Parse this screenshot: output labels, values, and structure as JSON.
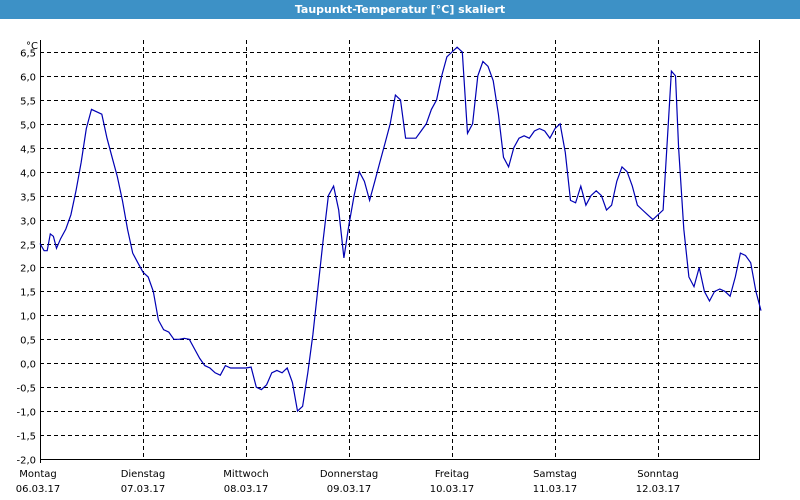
{
  "window": {
    "title": "Taupunkt-Temperatur [°C] skaliert"
  },
  "colors": {
    "titlebar": "#3d91c6",
    "line": "#0000b4",
    "grid": "#000000"
  },
  "chart_data": {
    "type": "line",
    "title": "Taupunkt-Temperatur [°C] skaliert",
    "ylabel": "°C",
    "ylim": [
      -2.0,
      6.75
    ],
    "yticks": [
      6.5,
      6.0,
      5.5,
      5.0,
      4.5,
      4.0,
      3.5,
      3.0,
      2.5,
      2.0,
      1.5,
      1.0,
      0.5,
      0.0,
      -0.5,
      -1.0,
      -1.5,
      -2.0
    ],
    "ytick_labels": [
      "6,5",
      "6,0",
      "5,5",
      "5,0",
      "4,5",
      "4,0",
      "3,5",
      "3,0",
      "2,5",
      "2,0",
      "1,5",
      "1,0",
      "0,5",
      "0,0",
      "-0,5",
      "-1,0",
      "-1,5",
      "-2,0"
    ],
    "xlim": [
      0,
      7
    ],
    "xticks": [
      {
        "day": "Montag",
        "date": "06.03.17"
      },
      {
        "day": "Dienstag",
        "date": "07.03.17"
      },
      {
        "day": "Mittwoch",
        "date": "08.03.17"
      },
      {
        "day": "Donnerstag",
        "date": "09.03.17"
      },
      {
        "day": "Freitag",
        "date": "10.03.17"
      },
      {
        "day": "Samstag",
        "date": "11.03.17"
      },
      {
        "day": "Sonntag",
        "date": "12.03.17"
      }
    ],
    "grid": true,
    "series": [
      {
        "points": [
          [
            0.0,
            2.5
          ],
          [
            0.04,
            2.35
          ],
          [
            0.07,
            2.35
          ],
          [
            0.1,
            2.7
          ],
          [
            0.13,
            2.65
          ],
          [
            0.16,
            2.4
          ],
          [
            0.2,
            2.6
          ],
          [
            0.25,
            2.8
          ],
          [
            0.3,
            3.1
          ],
          [
            0.35,
            3.6
          ],
          [
            0.4,
            4.2
          ],
          [
            0.45,
            4.9
          ],
          [
            0.5,
            5.3
          ],
          [
            0.55,
            5.25
          ],
          [
            0.6,
            5.2
          ],
          [
            0.65,
            4.7
          ],
          [
            0.7,
            4.3
          ],
          [
            0.75,
            3.9
          ],
          [
            0.8,
            3.4
          ],
          [
            0.85,
            2.8
          ],
          [
            0.9,
            2.3
          ],
          [
            0.95,
            2.1
          ],
          [
            1.0,
            1.9
          ],
          [
            1.05,
            1.8
          ],
          [
            1.1,
            1.5
          ],
          [
            1.15,
            0.9
          ],
          [
            1.2,
            0.7
          ],
          [
            1.25,
            0.65
          ],
          [
            1.3,
            0.5
          ],
          [
            1.35,
            0.5
          ],
          [
            1.4,
            0.52
          ],
          [
            1.45,
            0.5
          ],
          [
            1.5,
            0.3
          ],
          [
            1.55,
            0.1
          ],
          [
            1.6,
            -0.05
          ],
          [
            1.65,
            -0.1
          ],
          [
            1.7,
            -0.2
          ],
          [
            1.75,
            -0.25
          ],
          [
            1.8,
            -0.05
          ],
          [
            1.85,
            -0.1
          ],
          [
            1.9,
            -0.1
          ],
          [
            1.95,
            -0.1
          ],
          [
            2.0,
            -0.1
          ],
          [
            2.05,
            -0.08
          ],
          [
            2.1,
            -0.5
          ],
          [
            2.15,
            -0.55
          ],
          [
            2.2,
            -0.45
          ],
          [
            2.25,
            -0.2
          ],
          [
            2.3,
            -0.15
          ],
          [
            2.35,
            -0.2
          ],
          [
            2.4,
            -0.1
          ],
          [
            2.45,
            -0.4
          ],
          [
            2.5,
            -1.0
          ],
          [
            2.55,
            -0.9
          ],
          [
            2.6,
            -0.2
          ],
          [
            2.65,
            0.6
          ],
          [
            2.7,
            1.6
          ],
          [
            2.75,
            2.6
          ],
          [
            2.8,
            3.5
          ],
          [
            2.85,
            3.7
          ],
          [
            2.9,
            3.2
          ],
          [
            2.95,
            2.2
          ],
          [
            3.0,
            2.9
          ],
          [
            3.05,
            3.5
          ],
          [
            3.1,
            4.0
          ],
          [
            3.15,
            3.8
          ],
          [
            3.2,
            3.4
          ],
          [
            3.25,
            3.8
          ],
          [
            3.3,
            4.2
          ],
          [
            3.35,
            4.6
          ],
          [
            3.4,
            5.0
          ],
          [
            3.45,
            5.6
          ],
          [
            3.5,
            5.5
          ],
          [
            3.55,
            4.7
          ],
          [
            3.6,
            4.7
          ],
          [
            3.65,
            4.7
          ],
          [
            3.7,
            4.85
          ],
          [
            3.75,
            5.0
          ],
          [
            3.8,
            5.3
          ],
          [
            3.85,
            5.5
          ],
          [
            3.9,
            6.0
          ],
          [
            3.95,
            6.4
          ],
          [
            4.0,
            6.5
          ],
          [
            4.05,
            6.6
          ],
          [
            4.1,
            6.5
          ],
          [
            4.15,
            4.8
          ],
          [
            4.2,
            5.0
          ],
          [
            4.25,
            6.0
          ],
          [
            4.3,
            6.3
          ],
          [
            4.35,
            6.2
          ],
          [
            4.4,
            5.9
          ],
          [
            4.45,
            5.2
          ],
          [
            4.5,
            4.3
          ],
          [
            4.55,
            4.1
          ],
          [
            4.6,
            4.5
          ],
          [
            4.65,
            4.7
          ],
          [
            4.7,
            4.75
          ],
          [
            4.75,
            4.7
          ],
          [
            4.8,
            4.85
          ],
          [
            4.85,
            4.9
          ],
          [
            4.9,
            4.85
          ],
          [
            4.95,
            4.7
          ],
          [
            5.0,
            4.9
          ],
          [
            5.05,
            5.0
          ],
          [
            5.1,
            4.4
          ],
          [
            5.15,
            3.4
          ],
          [
            5.2,
            3.35
          ],
          [
            5.25,
            3.7
          ],
          [
            5.3,
            3.3
          ],
          [
            5.35,
            3.5
          ],
          [
            5.4,
            3.6
          ],
          [
            5.45,
            3.5
          ],
          [
            5.5,
            3.2
          ],
          [
            5.55,
            3.3
          ],
          [
            5.6,
            3.8
          ],
          [
            5.65,
            4.1
          ],
          [
            5.7,
            4.0
          ],
          [
            5.75,
            3.7
          ],
          [
            5.8,
            3.3
          ],
          [
            5.85,
            3.2
          ],
          [
            5.9,
            3.1
          ],
          [
            5.95,
            3.0
          ],
          [
            6.0,
            3.1
          ],
          [
            6.05,
            3.2
          ],
          [
            6.1,
            5.0
          ],
          [
            6.13,
            6.1
          ],
          [
            6.17,
            6.0
          ],
          [
            6.2,
            4.5
          ],
          [
            6.25,
            2.8
          ],
          [
            6.3,
            1.8
          ],
          [
            6.35,
            1.6
          ],
          [
            6.4,
            2.0
          ],
          [
            6.45,
            1.5
          ],
          [
            6.5,
            1.3
          ],
          [
            6.55,
            1.5
          ],
          [
            6.6,
            1.55
          ],
          [
            6.65,
            1.5
          ],
          [
            6.7,
            1.4
          ],
          [
            6.75,
            1.8
          ],
          [
            6.8,
            2.3
          ],
          [
            6.85,
            2.25
          ],
          [
            6.9,
            2.1
          ],
          [
            6.95,
            1.5
          ],
          [
            7.0,
            1.1
          ]
        ]
      }
    ]
  },
  "chart_data_overflow_note": ""
}
